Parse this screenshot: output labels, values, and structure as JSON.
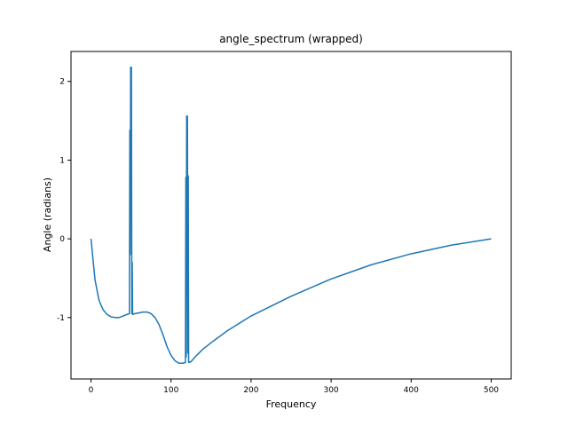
{
  "chart_data": {
    "type": "line",
    "title": "angle_spectrum (wrapped)",
    "xlabel": "Frequency",
    "ylabel": "Angle (radians)",
    "xlim": [
      -25,
      525
    ],
    "ylim": [
      -1.78,
      2.38
    ],
    "xticks": [
      0,
      100,
      200,
      300,
      400,
      500
    ],
    "xtick_labels": [
      "0",
      "100",
      "200",
      "300",
      "400",
      "500"
    ],
    "yticks": [
      -1,
      0,
      1,
      2
    ],
    "ytick_labels": [
      "-1",
      "0",
      "1",
      "2"
    ],
    "grid": false,
    "legend": "none",
    "line_color": "#1f77b4",
    "series": [
      {
        "x": [
          0,
          5,
          10,
          15,
          20,
          25,
          30,
          35,
          40,
          45,
          48,
          48.5,
          49,
          49.5,
          50,
          50.5,
          51,
          51.5,
          52,
          55,
          60,
          65,
          70,
          75,
          80,
          85,
          90,
          95,
          100,
          105,
          110,
          115,
          118,
          118.5,
          119,
          119.5,
          120,
          120.5,
          121,
          121.5,
          122,
          125,
          130,
          140,
          150,
          170,
          200,
          250,
          300,
          350,
          400,
          450,
          500
        ],
        "y": [
          0,
          -0.52,
          -0.78,
          -0.9,
          -0.96,
          -0.99,
          -1.0,
          -1.0,
          -0.98,
          -0.96,
          -0.95,
          1.38,
          -0.2,
          2.18,
          0.6,
          2.18,
          -0.95,
          -0.3,
          -0.96,
          -0.95,
          -0.94,
          -0.93,
          -0.93,
          -0.95,
          -1.0,
          -1.09,
          -1.22,
          -1.37,
          -1.48,
          -1.55,
          -1.58,
          -1.58,
          -1.57,
          0.78,
          -1.5,
          1.56,
          -0.7,
          1.56,
          -1.45,
          0.8,
          -1.57,
          -1.56,
          -1.5,
          -1.4,
          -1.32,
          -1.17,
          -0.98,
          -0.73,
          -0.51,
          -0.33,
          -0.19,
          -0.08,
          0
        ]
      }
    ]
  }
}
